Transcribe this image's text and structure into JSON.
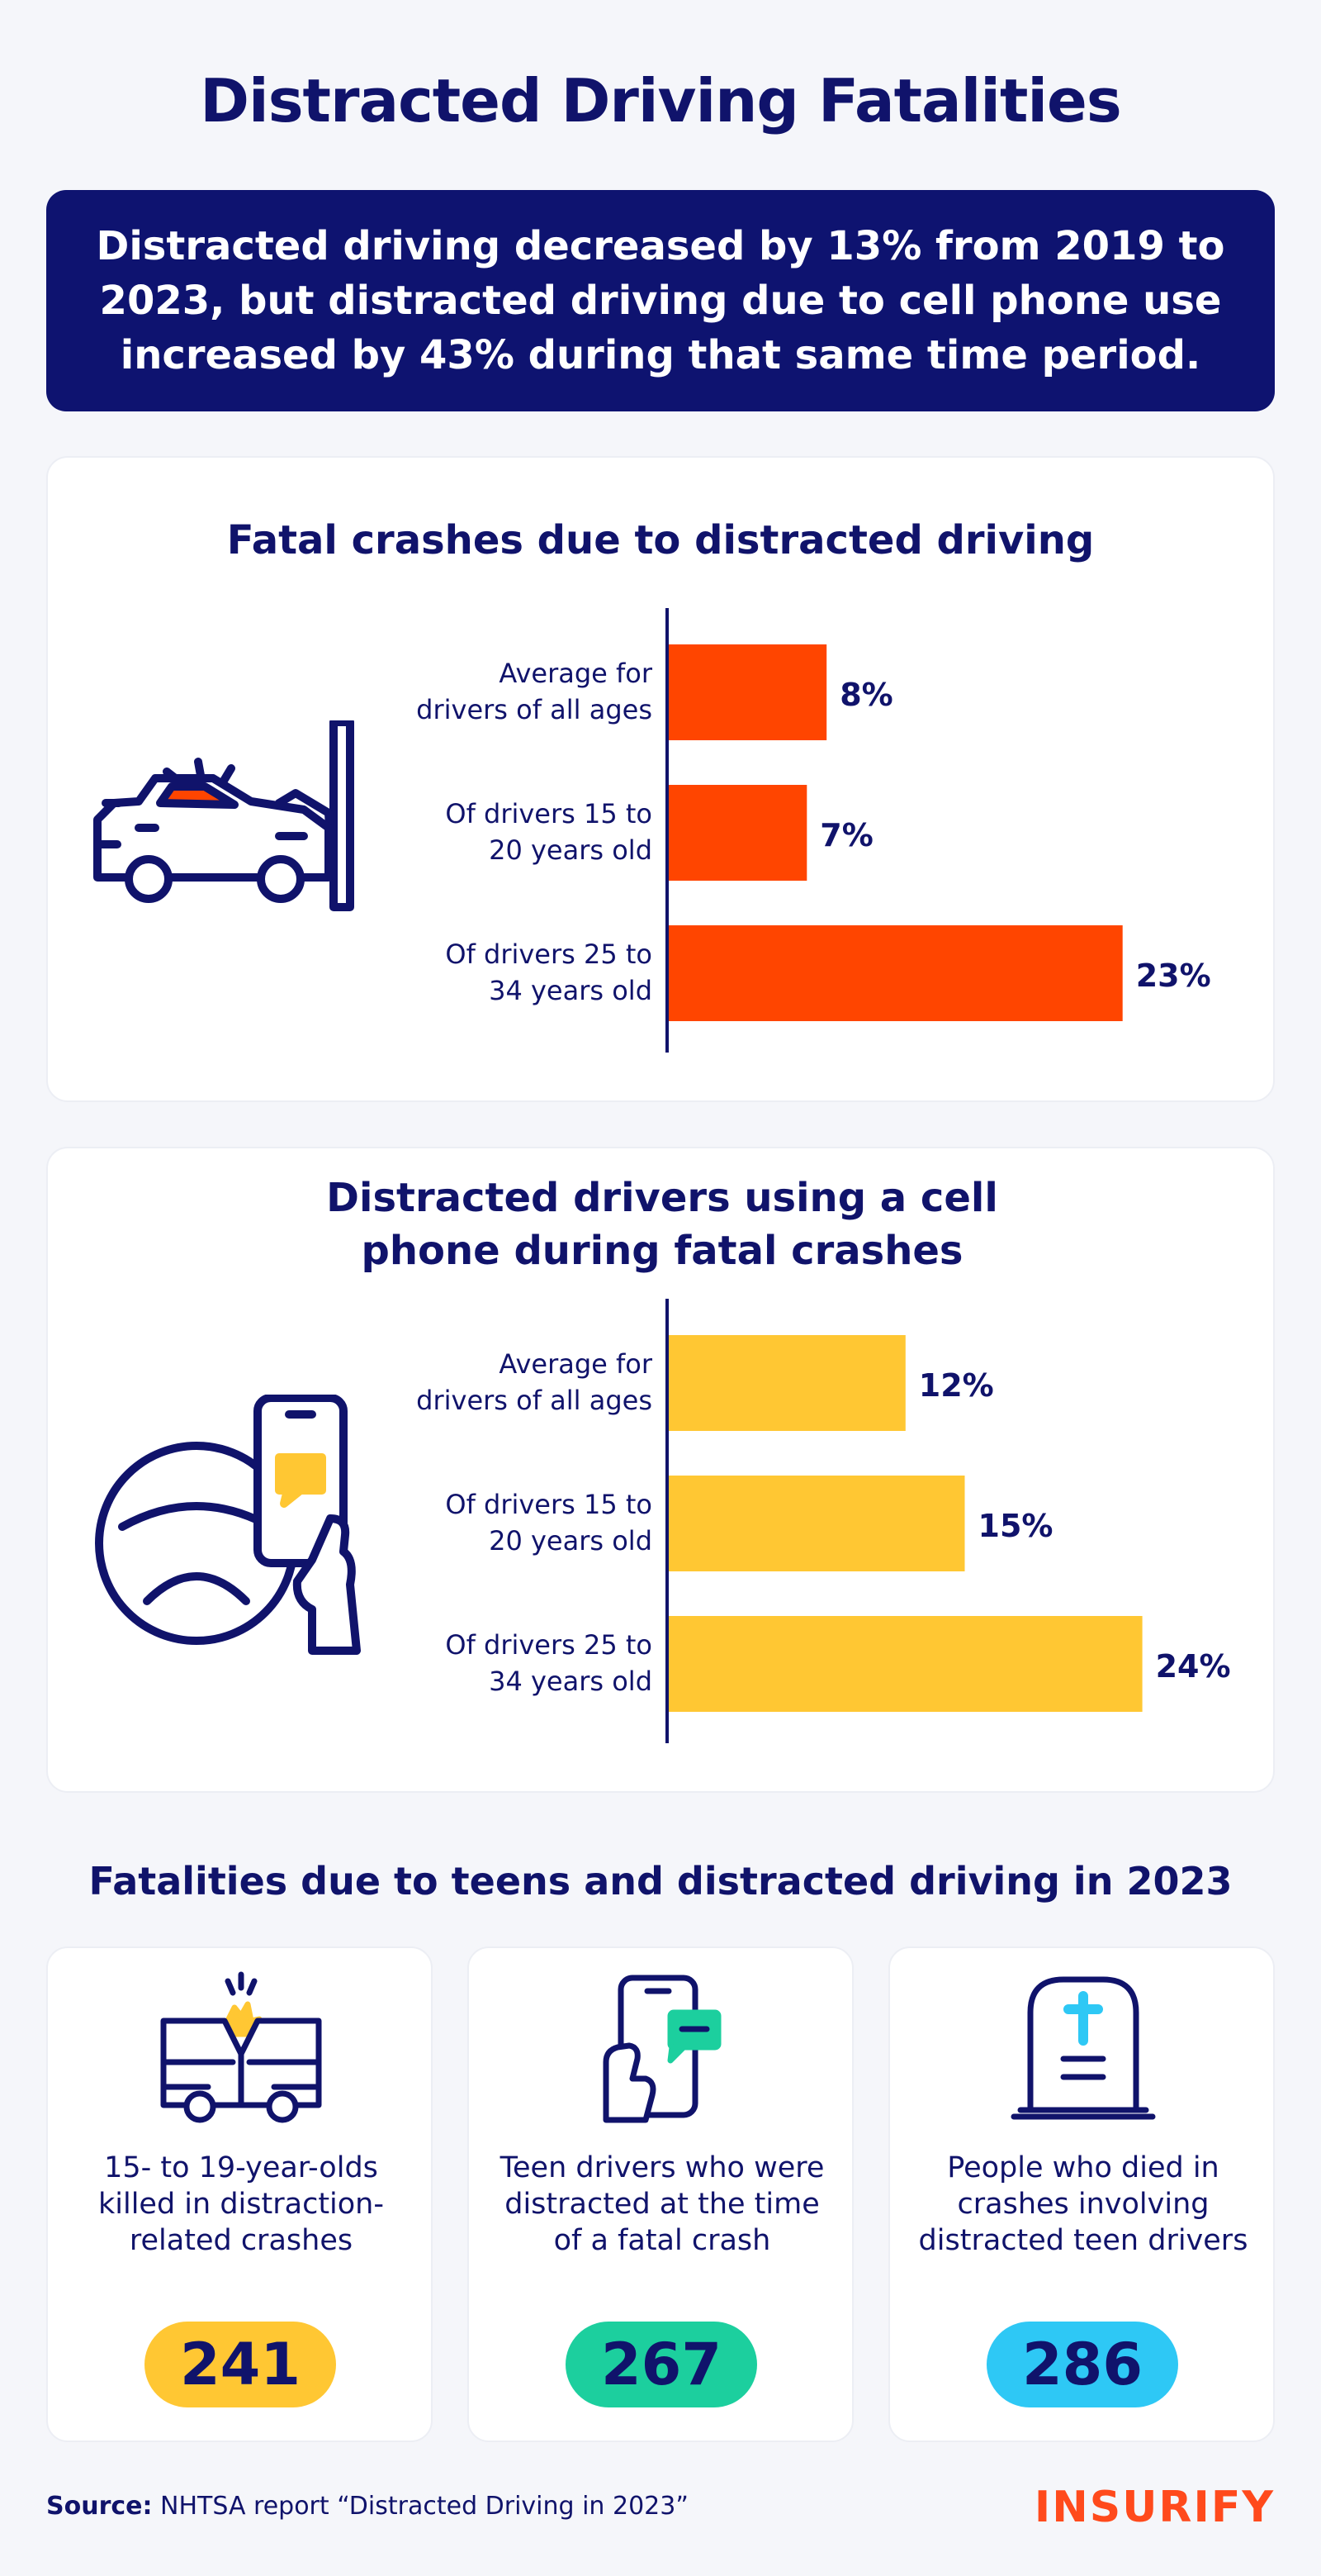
{
  "title": "Distracted Driving Fatalities",
  "banner": "Distracted driving decreased by 13% from 2019 to 2023, but distracted driving due to cell phone use increased by 43% during that same time period.",
  "colors": {
    "navy": "#10136b",
    "orange_bar": "#ff4500",
    "yellow_bar": "#ffc733",
    "pill_yellow": "#ffc733",
    "pill_green": "#1ccf9e",
    "pill_blue": "#2ec8f5",
    "brand": "#ff4a1c"
  },
  "chart_data": [
    {
      "type": "bar",
      "orientation": "horizontal",
      "title": "Fatal crashes due to distracted driving",
      "categories": [
        [
          "Average for",
          "drivers of all ages"
        ],
        [
          "Of drivers 15 to",
          "20 years old"
        ],
        [
          "Of drivers 25 to",
          "34 years old"
        ]
      ],
      "values": [
        8,
        7,
        23
      ],
      "value_labels": [
        "8%",
        "7%",
        "23%"
      ],
      "color": "#ff4500",
      "icon": "car-crash-icon"
    },
    {
      "type": "bar",
      "orientation": "horizontal",
      "title": "Distracted drivers using a cell phone during fatal crashes",
      "categories": [
        [
          "Average for",
          "drivers of all ages"
        ],
        [
          "Of drivers 15 to",
          "20 years old"
        ],
        [
          "Of drivers 25 to",
          "34 years old"
        ]
      ],
      "values": [
        12,
        15,
        24
      ],
      "value_labels": [
        "12%",
        "15%",
        "24%"
      ],
      "color": "#ffc733",
      "icon": "phone-steering-wheel-icon"
    }
  ],
  "teens": {
    "title": "Fatalities due to teens and distracted driving in 2023",
    "stats": [
      {
        "label": "15- to 19-year-olds killed in distraction-related crashes",
        "value": "241",
        "icon": "car-collision-icon"
      },
      {
        "label": "Teen drivers who were distracted at the time of a fatal crash",
        "value": "267",
        "icon": "phone-message-icon"
      },
      {
        "label": "People who died in crashes involving distracted teen drivers",
        "value": "286",
        "icon": "gravestone-icon"
      }
    ]
  },
  "source": {
    "label": "Source:",
    "text": "NHTSA report “Distracted Driving in 2023”"
  },
  "logo": "INSURIFY"
}
